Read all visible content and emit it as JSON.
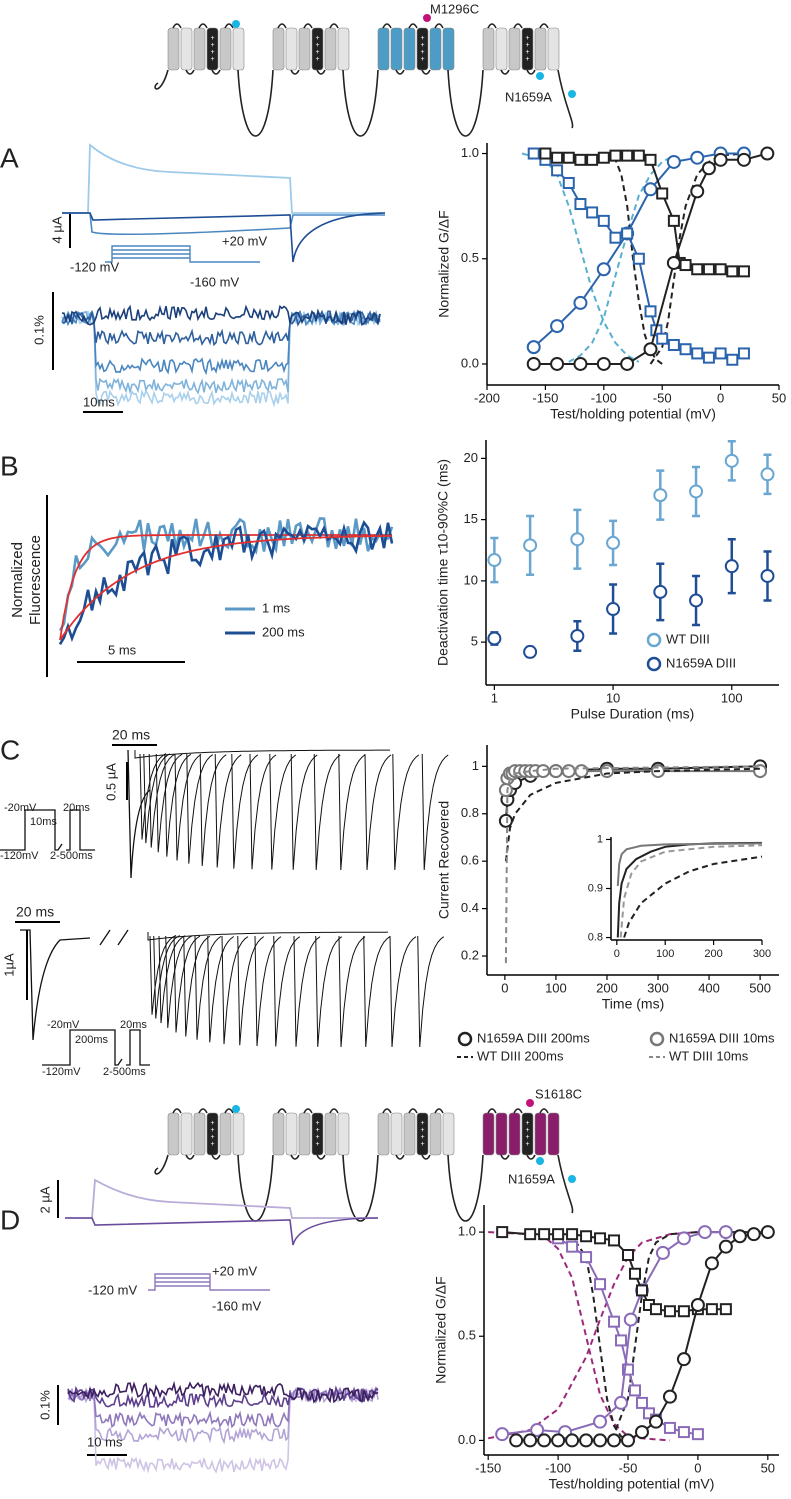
{
  "panels": {
    "top_diagram": {
      "labels": [
        "M1296C",
        "N1659A"
      ]
    },
    "a": {
      "label": "A",
      "texts": [
        "4 µA",
        "+20 mV",
        "-120 mV",
        "-160 mV",
        "0.1%",
        "10ms"
      ]
    },
    "b": {
      "label": "B",
      "texts": [
        "Normalized",
        "Fluorescence",
        "5 ms"
      ],
      "legend": [
        "1 ms",
        "200 ms"
      ]
    },
    "c": {
      "label": "C",
      "texts": [
        "20 ms",
        "0.5 µA",
        "-20mV",
        "10ms",
        "20ms",
        "-120mV",
        "2-500ms",
        "20 ms",
        "1µA",
        "-20mV",
        "200ms",
        "20ms",
        "-120mV",
        "2-500ms"
      ]
    },
    "mid_diagram": {
      "labels": [
        "S1618C",
        "N1659A"
      ]
    },
    "d": {
      "label": "D",
      "texts": [
        "2 µA",
        "+20 mV",
        "-120 mV",
        "-160 mV",
        "0.1%",
        "10 ms"
      ]
    }
  },
  "chart_data": [
    {
      "type": "scatter",
      "xlabel": "Test/holding potential (mV)",
      "ylabel": "Normalized G/ΔF",
      "xlim": [
        -200,
        50
      ],
      "ylim": [
        -0.1,
        1.05
      ],
      "xticks": [
        -200,
        -150,
        -100,
        -50,
        0,
        50
      ],
      "yticks": [
        {
          "value": 0,
          "label": "0.0"
        },
        0.5,
        {
          "value": 1,
          "label": "1.0"
        }
      ],
      "series": [
        {
          "color": "#58b0d0",
          "marker": "none",
          "line_style": "dashed",
          "x": [
            -170,
            -150,
            -140,
            -130,
            -120,
            -110,
            -100,
            -90,
            -80,
            -70
          ],
          "values": [
            1.0,
            0.97,
            0.9,
            0.75,
            0.55,
            0.35,
            0.2,
            0.1,
            0.04,
            0.01
          ]
        },
        {
          "color": "#58b0d0",
          "marker": "none",
          "line_style": "dashed",
          "x": [
            -130,
            -120,
            -110,
            -100,
            -90,
            -80,
            -70,
            -60,
            -50,
            -40
          ],
          "values": [
            0.01,
            0.04,
            0.1,
            0.22,
            0.42,
            0.62,
            0.8,
            0.9,
            0.96,
            0.99
          ]
        },
        {
          "color": "#222222",
          "marker": "none",
          "line_style": "dashed",
          "x": [
            -100,
            -90,
            -85,
            -80,
            -75,
            -70,
            -65,
            -60,
            -55,
            -50
          ],
          "values": [
            1.0,
            0.97,
            0.9,
            0.75,
            0.5,
            0.3,
            0.14,
            0.06,
            0.02,
            0.0
          ]
        },
        {
          "color": "#222222",
          "marker": "none",
          "line_style": "dashed",
          "x": [
            -60,
            -50,
            -45,
            -40,
            -35,
            -30,
            -20,
            -10,
            0,
            20
          ],
          "values": [
            0.0,
            0.08,
            0.2,
            0.4,
            0.6,
            0.75,
            0.9,
            0.96,
            0.99,
            1.0
          ]
        },
        {
          "color": "#2b64ad",
          "marker": "circle",
          "line_style": "solid",
          "x": [
            -160,
            -140,
            -120,
            -100,
            -80,
            -60,
            -40,
            -20,
            0,
            20
          ],
          "values": [
            0.08,
            0.18,
            0.29,
            0.45,
            0.62,
            0.83,
            0.96,
            0.98,
            1.0,
            1.0
          ]
        },
        {
          "color": "#2b64ad",
          "marker": "square",
          "line_style": "solid",
          "x": [
            -160,
            -150,
            -140,
            -130,
            -120,
            -110,
            -100,
            -90,
            -80,
            -70,
            -60,
            -55,
            -50,
            -40,
            -30,
            -20,
            -10,
            0,
            10,
            20
          ],
          "values": [
            1.0,
            0.97,
            0.92,
            0.86,
            0.76,
            0.72,
            0.68,
            0.6,
            0.62,
            0.5,
            0.25,
            0.16,
            0.12,
            0.09,
            0.07,
            0.05,
            0.03,
            0.05,
            0.02,
            0.05
          ]
        },
        {
          "color": "#222222",
          "marker": "square",
          "line_style": "solid",
          "x": [
            -150,
            -140,
            -130,
            -120,
            -110,
            -100,
            -90,
            -80,
            -70,
            -60,
            -50,
            -40,
            -35,
            -30,
            -20,
            -10,
            0,
            10,
            20
          ],
          "values": [
            1.0,
            0.98,
            0.98,
            0.97,
            0.97,
            0.98,
            0.99,
            0.99,
            0.99,
            0.97,
            0.81,
            0.68,
            0.48,
            0.47,
            0.45,
            0.45,
            0.45,
            0.44,
            0.44
          ]
        },
        {
          "color": "#222222",
          "marker": "circle",
          "line_style": "solid",
          "x": [
            -160,
            -140,
            -120,
            -100,
            -80,
            -60,
            -40,
            -20,
            -10,
            0,
            20,
            40
          ],
          "values": [
            0,
            0,
            0,
            0,
            0,
            0.07,
            0.48,
            0.82,
            0.93,
            0.97,
            0.97,
            1.0
          ]
        }
      ]
    },
    {
      "type": "scatter",
      "xlabel": "Pulse Duration (ms)",
      "ylabel": "Deactivation time τ10-90%C (ms)",
      "log_x": true,
      "xlim": [
        0.85,
        250
      ],
      "ylim": [
        1.5,
        21.5
      ],
      "xticks": [
        1,
        10,
        100
      ],
      "yticks": [
        5,
        10,
        15,
        20
      ],
      "legend": "lower right",
      "series": [
        {
          "name": "WT DIII",
          "color": "#6aa6d2",
          "marker": "circle",
          "line_style": "none",
          "x": [
            1,
            2,
            5,
            10,
            25,
            50,
            100,
            200
          ],
          "values": [
            11.7,
            12.9,
            13.4,
            13.1,
            17,
            17.3,
            19.8,
            18.7
          ],
          "errors": [
            1.8,
            2.4,
            2.4,
            1.8,
            2,
            2,
            1.6,
            1.6
          ]
        },
        {
          "name": "N1659A DIII",
          "color": "#1f4e96",
          "marker": "circle",
          "line_style": "none",
          "x": [
            1,
            2,
            5,
            10,
            25,
            50,
            100,
            200
          ],
          "values": [
            5.3,
            4.2,
            5.5,
            7.7,
            9.1,
            8.4,
            11.2,
            10.4
          ],
          "errors": [
            0.5,
            0.4,
            1.2,
            2,
            2.3,
            2,
            2.2,
            2
          ]
        }
      ]
    },
    {
      "type": "scatter",
      "xlabel": "Time (ms)",
      "ylabel": "Current Recovered",
      "legend": "below",
      "xlim": [
        -35,
        537
      ],
      "ylim": [
        0.12,
        1.09
      ],
      "xticks": [
        0,
        100,
        200,
        300,
        400,
        500
      ],
      "yticks": [
        0.2,
        0.4,
        0.6,
        0.8,
        1
      ],
      "series": [
        {
          "name": "N1659A DIII 200ms",
          "color": "#222222",
          "marker": "circle",
          "line_style": "solid",
          "x": [
            2,
            5,
            10,
            20,
            50,
            100,
            200,
            300,
            500
          ],
          "values": [
            0.77,
            0.86,
            0.9,
            0.93,
            0.96,
            0.98,
            0.99,
            0.99,
            1.0
          ]
        },
        {
          "name": "N1659A DIII 10ms",
          "color": "#777777",
          "marker": "circle",
          "line_style": "solid",
          "x": [
            2,
            5,
            10,
            15,
            20,
            30,
            40,
            50,
            60,
            75,
            100,
            125,
            150,
            200,
            300,
            500
          ],
          "values": [
            0.9,
            0.95,
            0.97,
            0.97,
            0.98,
            0.98,
            0.98,
            0.98,
            0.98,
            0.98,
            0.98,
            0.98,
            0.98,
            0.98,
            0.98,
            0.98
          ]
        },
        {
          "name": "WT DIII 200ms",
          "color": "#222222",
          "marker": "none",
          "line_style": "dashed",
          "x": [
            2,
            10,
            20,
            50,
            100,
            200,
            300,
            500
          ],
          "values": [
            0.6,
            0.74,
            0.8,
            0.88,
            0.93,
            0.97,
            0.98,
            0.99
          ]
        },
        {
          "name": "WT DIII 10ms",
          "color": "#888888",
          "marker": "none",
          "line_style": "dashed",
          "x": [
            2,
            5,
            10,
            20,
            50,
            100,
            500
          ],
          "values": [
            0.17,
            0.9,
            0.95,
            0.97,
            0.98,
            0.99,
            1.0
          ]
        }
      ]
    },
    {
      "type": "line",
      "xlim": [
        -12,
        300
      ],
      "ylim": [
        0.795,
        1.005
      ],
      "xticks": [
        0,
        100,
        200,
        300
      ],
      "yticks": [
        0.8,
        0.9,
        1
      ],
      "series": [
        {
          "color": "#222222",
          "marker": "none",
          "line_style": "solid",
          "x": [
            2,
            5,
            10,
            20,
            40,
            70,
            100,
            150,
            200,
            300
          ],
          "values": [
            0.8,
            0.87,
            0.91,
            0.94,
            0.96,
            0.975,
            0.985,
            0.99,
            0.992,
            0.993
          ]
        },
        {
          "color": "#777777",
          "marker": "none",
          "line_style": "solid",
          "x": [
            2,
            5,
            10,
            20,
            50,
            100,
            300
          ],
          "values": [
            0.905,
            0.95,
            0.97,
            0.98,
            0.987,
            0.99,
            0.992
          ]
        },
        {
          "color": "#222222",
          "marker": "none",
          "line_style": "dashed",
          "x": [
            15,
            25,
            50,
            100,
            150,
            200,
            300
          ],
          "values": [
            0.8,
            0.83,
            0.87,
            0.91,
            0.935,
            0.95,
            0.965
          ]
        },
        {
          "color": "#999999",
          "marker": "none",
          "line_style": "dashed",
          "x": [
            8,
            15,
            30,
            50,
            100,
            200,
            300
          ],
          "values": [
            0.8,
            0.88,
            0.93,
            0.955,
            0.975,
            0.985,
            0.988
          ]
        }
      ]
    },
    {
      "type": "scatter",
      "xlabel": "Test/holding potential (mV)",
      "ylabel": "Normalized G/ΔF",
      "xlim": [
        -153,
        58
      ],
      "ylim": [
        -0.07,
        1.13
      ],
      "xticks": [
        -150,
        -100,
        -50,
        0,
        50
      ],
      "yticks": [
        {
          "value": 0,
          "label": "0.0"
        },
        0.5,
        {
          "value": 1,
          "label": "1.0"
        }
      ],
      "series": [
        {
          "color": "#9b2a7a",
          "marker": "none",
          "line_style": "dashed",
          "x": [
            -150,
            -120,
            -110,
            -100,
            -90,
            -80,
            -70,
            -60,
            -50,
            -40,
            -20
          ],
          "values": [
            1.0,
            0.99,
            0.98,
            0.92,
            0.78,
            0.5,
            0.22,
            0.08,
            0.02,
            0.01,
            0.0
          ]
        },
        {
          "color": "#9b2a7a",
          "marker": "none",
          "line_style": "dashed",
          "x": [
            -150,
            -120,
            -100,
            -80,
            -70,
            -60,
            -50,
            -40,
            -20,
            0,
            50
          ],
          "values": [
            0.01,
            0.05,
            0.15,
            0.4,
            0.58,
            0.75,
            0.88,
            0.95,
            0.99,
            1.0,
            1.0
          ]
        },
        {
          "color": "#222222",
          "marker": "none",
          "line_style": "dashed",
          "x": [
            -100,
            -90,
            -80,
            -75,
            -70,
            -65,
            -60,
            -55,
            -50
          ],
          "values": [
            1.0,
            0.98,
            0.88,
            0.7,
            0.45,
            0.2,
            0.07,
            0.02,
            0.0
          ]
        },
        {
          "color": "#222222",
          "marker": "none",
          "line_style": "dashed",
          "x": [
            -70,
            -60,
            -50,
            -45,
            -40,
            -35,
            -30,
            -20,
            0,
            50
          ],
          "values": [
            0.0,
            0.03,
            0.2,
            0.45,
            0.7,
            0.88,
            0.95,
            0.99,
            1.0,
            1.0
          ]
        },
        {
          "color": "#8a6bb8",
          "marker": "square",
          "line_style": "solid",
          "x": [
            -100,
            -90,
            -80,
            -70,
            -60,
            -55,
            -50,
            -45,
            -40,
            -35,
            -30,
            -20,
            -10,
            0
          ],
          "values": [
            0.97,
            0.93,
            0.88,
            0.75,
            0.57,
            0.48,
            0.34,
            0.24,
            0.18,
            0.13,
            0.1,
            0.06,
            0.04,
            0.03
          ]
        },
        {
          "color": "#8a6bb8",
          "marker": "circle",
          "line_style": "solid",
          "x": [
            -140,
            -115,
            -95,
            -70,
            -55,
            -48,
            -40,
            -25,
            -10,
            5,
            20
          ],
          "values": [
            0.03,
            0.05,
            0.04,
            0.09,
            0.18,
            0.58,
            0.72,
            0.9,
            0.97,
            1.0,
            1.0
          ]
        },
        {
          "color": "#222222",
          "marker": "square",
          "line_style": "solid",
          "x": [
            -140,
            -120,
            -110,
            -100,
            -90,
            -80,
            -70,
            -60,
            -50,
            -45,
            -40,
            -35,
            -30,
            -20,
            -10,
            0,
            10,
            20
          ],
          "values": [
            1.0,
            0.99,
            0.99,
            0.99,
            0.99,
            0.98,
            0.97,
            0.96,
            0.89,
            0.8,
            0.72,
            0.65,
            0.63,
            0.62,
            0.62,
            0.63,
            0.63,
            0.63
          ]
        },
        {
          "color": "#222222",
          "marker": "circle",
          "line_style": "solid",
          "x": [
            -130,
            -120,
            -110,
            -100,
            -90,
            -80,
            -70,
            -60,
            -50,
            -40,
            -30,
            -20,
            -10,
            0,
            10,
            20,
            30,
            40,
            50
          ],
          "values": [
            0,
            0,
            0,
            0,
            0,
            0,
            0,
            0,
            0,
            0.04,
            0.09,
            0.21,
            0.39,
            0.65,
            0.85,
            0.93,
            0.98,
            0.99,
            1.0
          ]
        }
      ]
    }
  ]
}
